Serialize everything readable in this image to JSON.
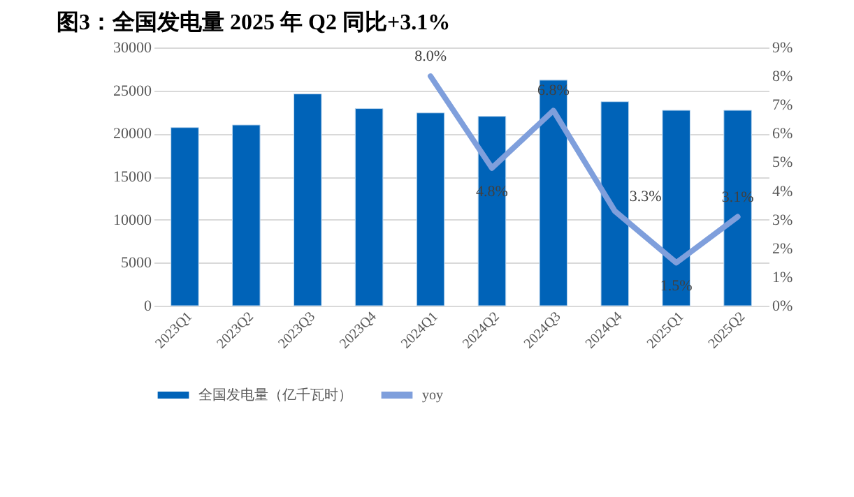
{
  "chart_data": {
    "type": "bar",
    "title": "图3：全国发电量 2025 年 Q2 同比+3.1%",
    "categories": [
      "2023Q1",
      "2023Q2",
      "2023Q3",
      "2023Q4",
      "2024Q1",
      "2024Q2",
      "2024Q3",
      "2024Q4",
      "2025Q1",
      "2025Q2"
    ],
    "series": [
      {
        "name": "全国发电量（亿千瓦时）",
        "color": "#0063b8",
        "values": [
          20700,
          21000,
          24600,
          22900,
          22400,
          22000,
          26200,
          23700,
          22700,
          22700
        ]
      },
      {
        "name": "yoy",
        "type": "line",
        "axis": "y2",
        "color": "#7f9fdc",
        "values": [
          null,
          null,
          null,
          null,
          8.0,
          4.8,
          6.8,
          3.3,
          1.5,
          3.1
        ],
        "value_labels": [
          null,
          null,
          null,
          null,
          "8.0%",
          "4.8%",
          "6.8%",
          "3.3%",
          "1.5%",
          "3.1%"
        ]
      }
    ],
    "ylim": [
      0,
      30000
    ],
    "yticks": [
      0,
      5000,
      10000,
      15000,
      20000,
      25000,
      30000
    ],
    "y2lim": [
      0,
      9
    ],
    "y2ticks": [
      {
        "value": 0,
        "label": "0%"
      },
      {
        "value": 1,
        "label": "1%"
      },
      {
        "value": 2,
        "label": "2%"
      },
      {
        "value": 3,
        "label": "3%"
      },
      {
        "value": 4,
        "label": "4%"
      },
      {
        "value": 5,
        "label": "5%"
      },
      {
        "value": 6,
        "label": "6%"
      },
      {
        "value": 7,
        "label": "7%"
      },
      {
        "value": 8,
        "label": "8%"
      },
      {
        "value": 9,
        "label": "9%"
      }
    ],
    "grid": "y",
    "legend": "bottom",
    "marker": "none",
    "line_style": "solid"
  }
}
